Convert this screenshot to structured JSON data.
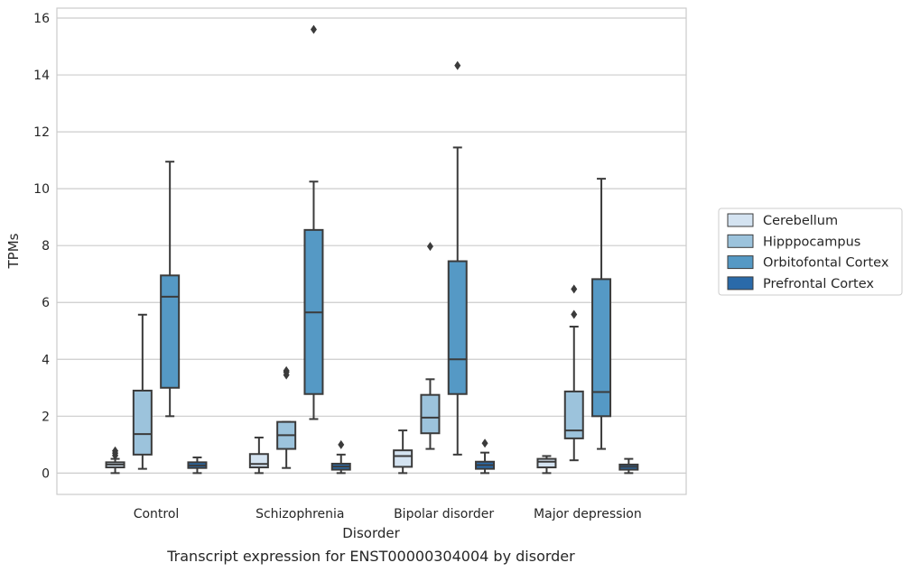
{
  "caption": "Transcript expression for ENST00000304004 by disorder",
  "chart_data": {
    "type": "box",
    "xlabel": "Disorder",
    "ylabel": "TPMs",
    "ylim": [
      -0.75,
      16.35
    ],
    "yticks": [
      0,
      2,
      4,
      6,
      8,
      10,
      12,
      14,
      16
    ],
    "grid": "horizontal",
    "legend_position": "right",
    "categories": [
      "Control",
      "Schizophrenia",
      "Bipolar disorder",
      "Major depression"
    ],
    "series": [
      {
        "name": "Cerebellum",
        "color": "#d4e3f1",
        "boxes": [
          {
            "whisker_low": 0.0,
            "q1": 0.2,
            "median": 0.3,
            "q3": 0.38,
            "whisker_high": 0.5,
            "outliers": [
              0.62,
              0.7,
              0.78
            ]
          },
          {
            "whisker_low": 0.0,
            "q1": 0.2,
            "median": 0.32,
            "q3": 0.67,
            "whisker_high": 1.25,
            "outliers": []
          },
          {
            "whisker_low": 0.0,
            "q1": 0.22,
            "median": 0.6,
            "q3": 0.8,
            "whisker_high": 1.5,
            "outliers": []
          },
          {
            "whisker_low": 0.0,
            "q1": 0.2,
            "median": 0.4,
            "q3": 0.5,
            "whisker_high": 0.6,
            "outliers": []
          }
        ]
      },
      {
        "name": "Hipppocampus",
        "color": "#9cc3dc",
        "boxes": [
          {
            "whisker_low": 0.15,
            "q1": 0.65,
            "median": 1.37,
            "q3": 2.9,
            "whisker_high": 5.57,
            "outliers": []
          },
          {
            "whisker_low": 0.18,
            "q1": 0.85,
            "median": 1.33,
            "q3": 1.8,
            "whisker_high": 1.8,
            "outliers": [
              3.45,
              3.55,
              3.6
            ]
          },
          {
            "whisker_low": 0.85,
            "q1": 1.4,
            "median": 1.95,
            "q3": 2.75,
            "whisker_high": 3.3,
            "outliers": [
              7.97
            ]
          },
          {
            "whisker_low": 0.45,
            "q1": 1.22,
            "median": 1.5,
            "q3": 2.87,
            "whisker_high": 5.15,
            "outliers": [
              5.58,
              6.47
            ]
          }
        ]
      },
      {
        "name": "Orbitofontal Cortex",
        "color": "#5599c5",
        "boxes": [
          {
            "whisker_low": 2.0,
            "q1": 3.0,
            "median": 6.2,
            "q3": 6.95,
            "whisker_high": 10.95,
            "outliers": []
          },
          {
            "whisker_low": 1.9,
            "q1": 2.78,
            "median": 5.65,
            "q3": 8.55,
            "whisker_high": 10.25,
            "outliers": []
          },
          {
            "whisker_low": 0.65,
            "q1": 2.78,
            "median": 4.0,
            "q3": 7.45,
            "whisker_high": 11.45,
            "outliers": [
              14.33
            ]
          },
          {
            "whisker_low": 0.85,
            "q1": 2.0,
            "median": 2.85,
            "q3": 6.82,
            "whisker_high": 10.35,
            "outliers": []
          }
        ]
      },
      {
        "name": "Prefrontal Cortex",
        "color": "#2a6aa9",
        "boxes": [
          {
            "whisker_low": 0.0,
            "q1": 0.18,
            "median": 0.27,
            "q3": 0.38,
            "whisker_high": 0.55,
            "outliers": []
          },
          {
            "whisker_low": 0.0,
            "q1": 0.12,
            "median": 0.23,
            "q3": 0.33,
            "whisker_high": 0.65,
            "outliers": [
              1.0
            ]
          },
          {
            "whisker_low": 0.0,
            "q1": 0.15,
            "median": 0.28,
            "q3": 0.4,
            "whisker_high": 0.72,
            "outliers": [
              1.05
            ]
          },
          {
            "whisker_low": 0.0,
            "q1": 0.12,
            "median": 0.22,
            "q3": 0.3,
            "whisker_high": 0.5,
            "outliers": []
          }
        ]
      }
    ],
    "outlier_of": [
      {
        "category": "Schizophrenia",
        "series": "Orbitofontal Cortex",
        "value": 15.6
      }
    ]
  }
}
